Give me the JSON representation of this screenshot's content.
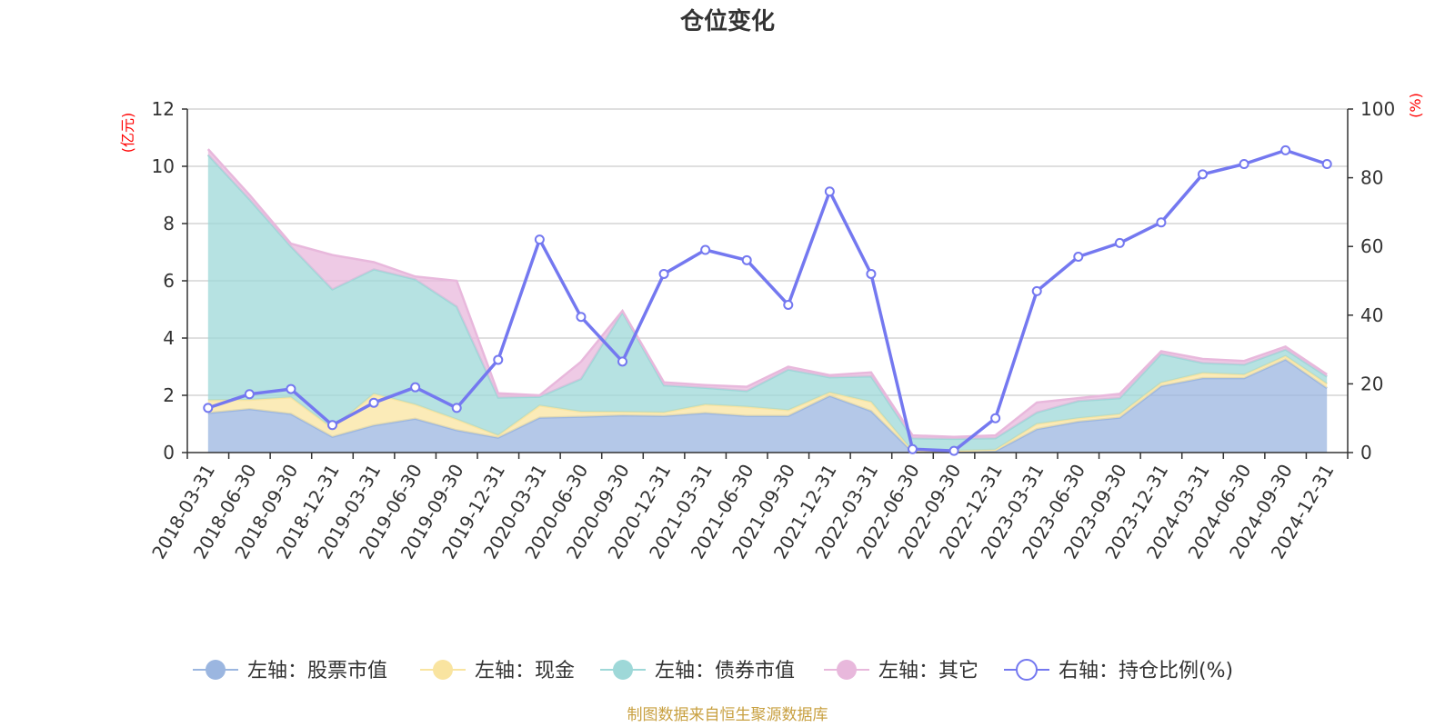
{
  "chart_data": {
    "type": "area",
    "title": "仓位变化",
    "left_axis_unit": "(亿元)",
    "right_axis_unit": "(%)",
    "left_ylim": [
      0,
      12
    ],
    "left_ticks": [
      0,
      2,
      4,
      6,
      8,
      10,
      12
    ],
    "right_ylim": [
      0,
      100
    ],
    "right_ticks": [
      0,
      20,
      40,
      60,
      80,
      100
    ],
    "categories": [
      "2018-03-31",
      "2018-06-30",
      "2018-09-30",
      "2018-12-31",
      "2019-03-31",
      "2019-06-30",
      "2019-09-30",
      "2019-12-31",
      "2020-03-31",
      "2020-06-30",
      "2020-09-30",
      "2020-12-31",
      "2021-03-31",
      "2021-06-30",
      "2021-09-30",
      "2021-12-31",
      "2022-03-31",
      "2022-06-30",
      "2022-09-30",
      "2022-12-31",
      "2023-03-31",
      "2023-06-30",
      "2023-09-30",
      "2023-12-31",
      "2024-03-31",
      "2024-06-30",
      "2024-09-30",
      "2024-12-31"
    ],
    "series": [
      {
        "name": "左轴：股票市值",
        "axis": "left",
        "kind": "area",
        "color": "#9bb6e0",
        "values": [
          1.38,
          1.52,
          1.35,
          0.55,
          0.95,
          1.18,
          0.78,
          0.52,
          1.22,
          1.25,
          1.3,
          1.28,
          1.38,
          1.28,
          1.28,
          1.98,
          1.45,
          0.02,
          0.03,
          0.05,
          0.82,
          1.08,
          1.22,
          2.32,
          2.6,
          2.6,
          3.25,
          2.25
        ]
      },
      {
        "name": "左轴：现金",
        "axis": "left",
        "kind": "area",
        "color": "#f9e4a0",
        "values": [
          0.45,
          0.32,
          0.58,
          0.3,
          1.1,
          0.5,
          0.38,
          0.08,
          0.42,
          0.18,
          0.12,
          0.12,
          0.3,
          0.32,
          0.2,
          0.12,
          0.32,
          0.03,
          0.03,
          0.05,
          0.18,
          0.12,
          0.12,
          0.12,
          0.18,
          0.12,
          0.12,
          0.15
        ]
      },
      {
        "name": "左轴：债券市值",
        "axis": "left",
        "kind": "area",
        "color": "#9ed8d8",
        "values": [
          8.57,
          7.0,
          5.27,
          4.85,
          4.35,
          4.37,
          3.94,
          1.32,
          0.31,
          1.14,
          3.48,
          0.95,
          0.58,
          0.55,
          1.42,
          0.53,
          0.89,
          0.45,
          0.42,
          0.4,
          0.4,
          0.6,
          0.56,
          1.0,
          0.35,
          0.35,
          0.23,
          0.25
        ]
      },
      {
        "name": "左轴：其它",
        "axis": "left",
        "kind": "area",
        "color": "#e8b8dc",
        "values": [
          0.2,
          0.16,
          0.1,
          1.2,
          0.25,
          0.1,
          0.9,
          0.15,
          0.05,
          0.6,
          0.05,
          0.1,
          0.1,
          0.15,
          0.1,
          0.07,
          0.14,
          0.1,
          0.07,
          0.1,
          0.35,
          0.1,
          0.15,
          0.1,
          0.14,
          0.13,
          0.1,
          0.08
        ]
      },
      {
        "name": "右轴：持仓比例(%)",
        "axis": "right",
        "kind": "line",
        "color": "#7478f0",
        "values": [
          13,
          17,
          18.5,
          8,
          14.5,
          19,
          13,
          27,
          62,
          39.5,
          26.5,
          52,
          59,
          56,
          43,
          76,
          52,
          1,
          0.5,
          10,
          47,
          57,
          61,
          67,
          81,
          84,
          88,
          84
        ]
      }
    ]
  },
  "source_note": "制图数据来自恒生聚源数据库"
}
